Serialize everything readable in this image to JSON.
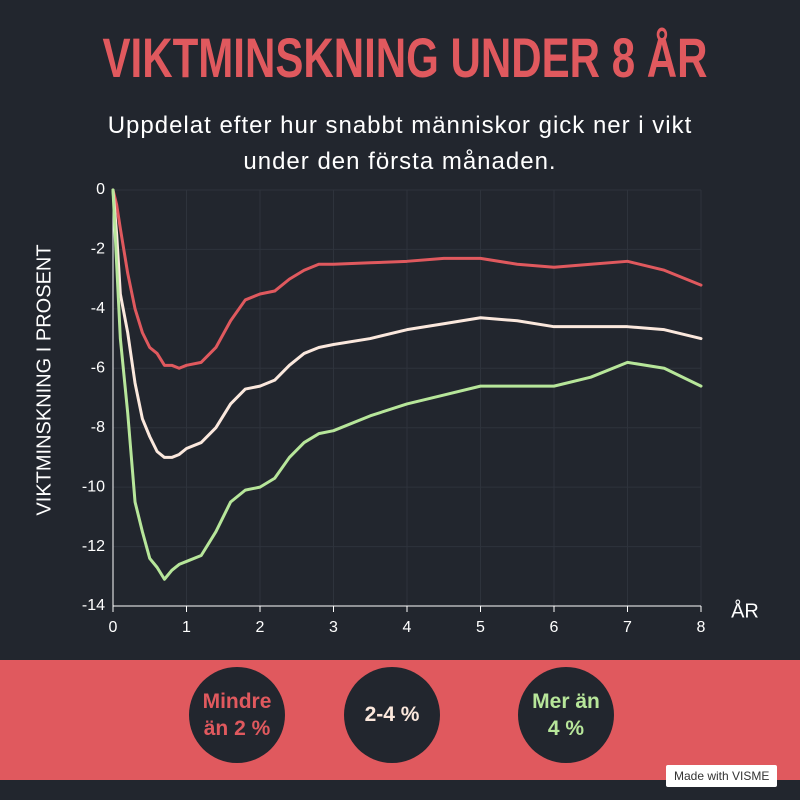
{
  "chart_data": {
    "type": "line",
    "title": "VIKTMINSKNING UNDER 8 ÅR",
    "subtitle": "Uppdelat efter hur snabbt människor gick ner i vikt under den första månaden.",
    "x_label": "ÅR",
    "y_label": "VIKTMINSKNING I PROSENT",
    "x": [
      0,
      0.05,
      0.1,
      0.2,
      0.3,
      0.4,
      0.5,
      0.6,
      0.7,
      0.8,
      0.9,
      1.0,
      1.2,
      1.4,
      1.6,
      1.8,
      2.0,
      2.2,
      2.4,
      2.6,
      2.8,
      3.0,
      3.5,
      4.0,
      4.5,
      5.0,
      5.5,
      6.0,
      6.5,
      7.0,
      7.5,
      8.0
    ],
    "series": [
      {
        "name": "Mindre än 2 %",
        "color": "#e0595e",
        "values": [
          0,
          -0.5,
          -1.3,
          -2.8,
          -4.0,
          -4.8,
          -5.3,
          -5.5,
          -5.9,
          -5.9,
          -6.0,
          -5.9,
          -5.8,
          -5.3,
          -4.4,
          -3.7,
          -3.5,
          -3.4,
          -3.0,
          -2.7,
          -2.5,
          -2.5,
          -2.45,
          -2.4,
          -2.3,
          -2.3,
          -2.5,
          -2.6,
          -2.5,
          -2.4,
          -2.7,
          -3.2
        ]
      },
      {
        "name": "2-4 %",
        "color": "#fbe8dd",
        "values": [
          0,
          -1.5,
          -3.5,
          -4.8,
          -6.5,
          -7.7,
          -8.3,
          -8.8,
          -9.0,
          -9.0,
          -8.9,
          -8.7,
          -8.5,
          -8.0,
          -7.2,
          -6.7,
          -6.6,
          -6.4,
          -5.9,
          -5.5,
          -5.3,
          -5.2,
          -5.0,
          -4.7,
          -4.5,
          -4.3,
          -4.4,
          -4.6,
          -4.6,
          -4.6,
          -4.7,
          -5.0
        ]
      },
      {
        "name": "Mer än 4 %",
        "color": "#b7e69a",
        "values": [
          0,
          -2.5,
          -5.0,
          -7.5,
          -10.5,
          -11.5,
          -12.4,
          -12.7,
          -13.1,
          -12.8,
          -12.6,
          -12.5,
          -12.3,
          -11.5,
          -10.5,
          -10.1,
          -10.0,
          -9.7,
          -9.0,
          -8.5,
          -8.2,
          -8.1,
          -7.6,
          -7.2,
          -6.9,
          -6.6,
          -6.6,
          -6.6,
          -6.3,
          -5.8,
          -6.0,
          -6.6
        ]
      }
    ],
    "xlim": [
      0,
      8
    ],
    "xticks": [
      0,
      1,
      2,
      3,
      4,
      5,
      6,
      7,
      8
    ],
    "ylim": [
      -14,
      0
    ],
    "yticks": [
      0,
      -2,
      -4,
      -6,
      -8,
      -10,
      -12,
      -14
    ],
    "grid": true
  },
  "footer": "Made with VISME"
}
